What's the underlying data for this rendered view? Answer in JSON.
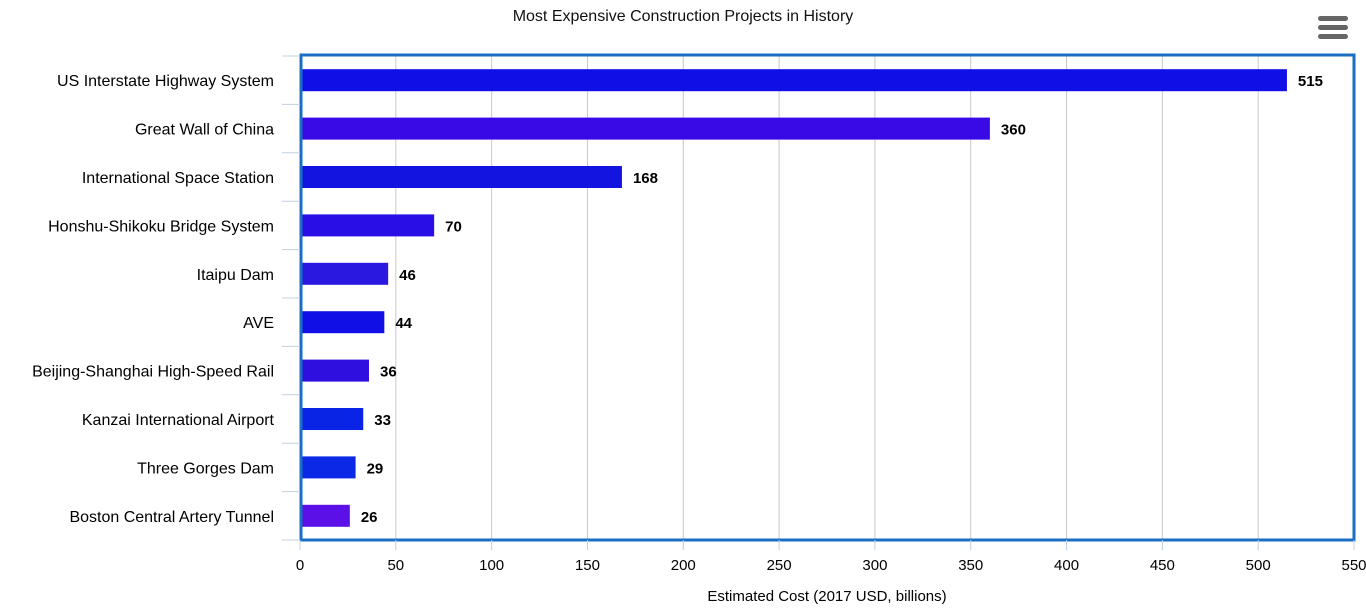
{
  "chart_data": {
    "type": "bar",
    "orientation": "horizontal",
    "title": "Most Expensive Construction Projects in History",
    "xlabel": "Estimated Cost (2017 USD, billions)",
    "ylabel": "",
    "xlim": [
      0,
      550
    ],
    "ticks": [
      0,
      50,
      100,
      150,
      200,
      250,
      300,
      350,
      400,
      450,
      500,
      550
    ],
    "grid": true,
    "categories": [
      "US Interstate Highway System",
      "Great Wall of China",
      "International Space Station",
      "Honshu-Shikoku Bridge System",
      "Itaipu Dam",
      "AVE",
      "Beijing-Shanghai High-Speed Rail",
      "Kanzai International Airport",
      "Three Gorges Dam",
      "Boston Central Artery Tunnel"
    ],
    "values": [
      515,
      360,
      168,
      70,
      46,
      44,
      36,
      33,
      29,
      26
    ],
    "colors": [
      "#1010e6",
      "#3a0ae6",
      "#1414e0",
      "#2a0ee6",
      "#2a18e0",
      "#1010e6",
      "#2f0ee0",
      "#0a24e6",
      "#0a28e6",
      "#5a10e6"
    ],
    "frame_color": "#1a6fc4"
  }
}
